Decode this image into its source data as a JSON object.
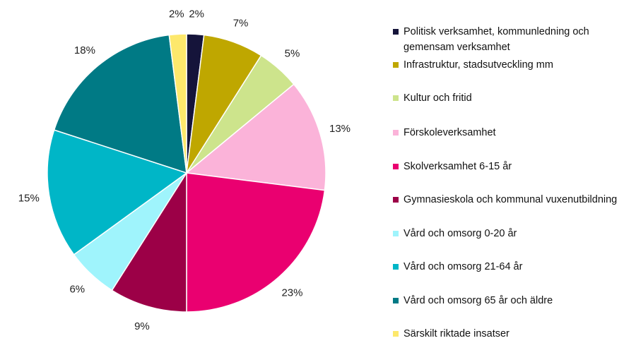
{
  "chart_data": {
    "type": "pie",
    "title": "",
    "start": "top",
    "direction": "clockwise",
    "legend_placement": "right",
    "slices": [
      {
        "label": "Politisk verksamhet, kommunledning och gemensam verksamhet",
        "value": 2,
        "display": "2%",
        "color": "#15143a"
      },
      {
        "label": "Infrastruktur, stadsutveckling mm",
        "value": 7,
        "display": "7%",
        "color": "#bfa700"
      },
      {
        "label": "Kultur och fritid",
        "value": 5,
        "display": "5%",
        "color": "#cde48c"
      },
      {
        "label": "Förskoleverksamhet",
        "value": 13,
        "display": "13%",
        "color": "#fbb3d9"
      },
      {
        "label": "Skolverksamhet 6-15 år",
        "value": 23,
        "display": "23%",
        "color": "#ea0070"
      },
      {
        "label": "Gymnasieskola och kommunal vuxenutbildning",
        "value": 9,
        "display": "9%",
        "color": "#9c0047"
      },
      {
        "label": "Vård och omsorg 0-20 år",
        "value": 6,
        "display": "6%",
        "color": "#9ff4fc"
      },
      {
        "label": "Vård och omsorg 21-64 år",
        "value": 15,
        "display": "15%",
        "color": "#00b6c7"
      },
      {
        "label": "Vård och omsorg 65 år och äldre",
        "value": 18,
        "display": "18%",
        "color": "#007a85"
      },
      {
        "label": "Särskilt riktade insatser",
        "value": 2,
        "display": "2%",
        "color": "#fde86c"
      }
    ]
  }
}
